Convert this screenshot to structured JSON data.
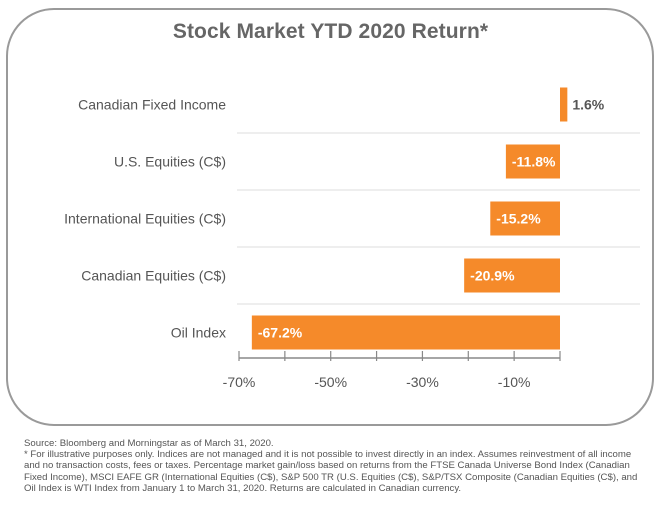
{
  "chart_data": {
    "type": "bar",
    "orientation": "horizontal",
    "title": "Stock Market YTD 2020 Return*",
    "categories": [
      "Canadian Fixed Income",
      "U.S. Equities (C$)",
      "International Equities (C$)",
      "Canadian Equities (C$)",
      "Oil Index"
    ],
    "values": [
      1.6,
      -11.8,
      -15.2,
      -20.9,
      -67.2
    ],
    "value_labels": [
      "1.6%",
      "-11.8%",
      "-15.2%",
      "-20.9%",
      "-67.2%"
    ],
    "xlim": [
      -70,
      0
    ],
    "xticks": [
      -70,
      -50,
      -30,
      -10
    ],
    "xtick_labels": [
      "-70%",
      "-50%",
      "-30%",
      "-10%"
    ],
    "grid": false,
    "bar_color": "#f58a2a",
    "label_color_inside": "#ffffff",
    "label_color_outside": "#555555"
  },
  "footnote": {
    "source": "Source: Bloomberg and Morningstar as of March 31, 2020.",
    "disclaimer": "* For illustrative purposes only. Indices are not managed and it is not possible to invest directly in an index. Assumes reinvestment of all income and no transaction costs, fees or taxes. Percentage market gain/loss based on returns from the FTSE Canada Universe Bond Index (Canadian Fixed Income), MSCI EAFE GR (International Equities (C$), S&P 500 TR (U.S. Equities (C$),  S&P/TSX Composite (Canadian Equities (C$), and Oil Index is WTI Index from January 1 to March 31, 2020. Returns are calculated in Canadian currency."
  }
}
